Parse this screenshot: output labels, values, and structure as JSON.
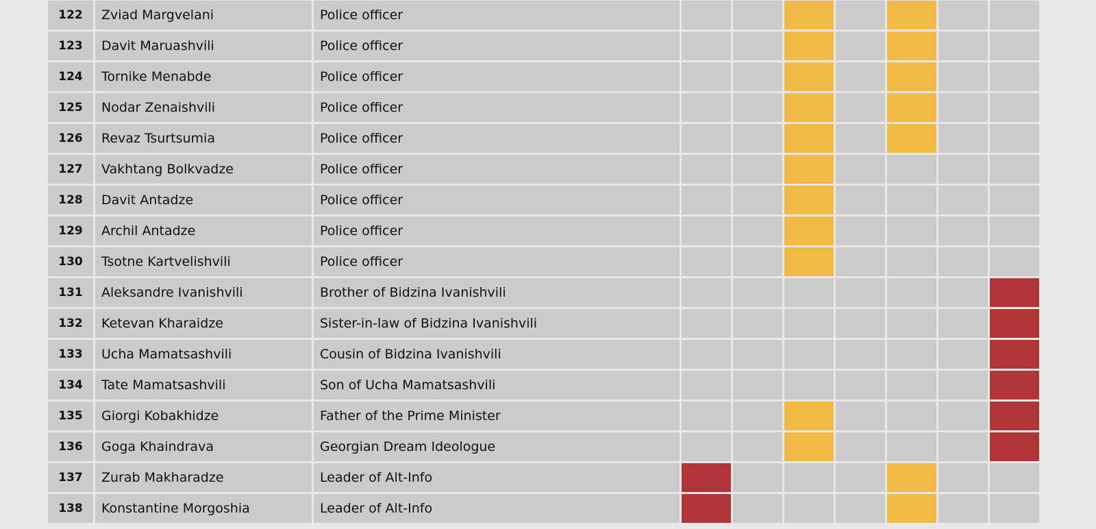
{
  "colors": {
    "cell_default": "#cbcbcb",
    "yellow": "#f2b945",
    "red": "#b03536",
    "background": "#e8e8e8"
  },
  "rows": [
    {
      "num": "122",
      "name": "Zviad Margvelani",
      "role": "Police officer",
      "cells": [
        "",
        "",
        "y",
        "",
        "y",
        "",
        ""
      ]
    },
    {
      "num": "123",
      "name": "Davit Maruashvili",
      "role": "Police officer",
      "cells": [
        "",
        "",
        "y",
        "",
        "y",
        "",
        ""
      ]
    },
    {
      "num": "124",
      "name": "Tornike Menabde",
      "role": "Police officer",
      "cells": [
        "",
        "",
        "y",
        "",
        "y",
        "",
        ""
      ]
    },
    {
      "num": "125",
      "name": "Nodar Zenaishvili",
      "role": "Police officer",
      "cells": [
        "",
        "",
        "y",
        "",
        "y",
        "",
        ""
      ]
    },
    {
      "num": "126",
      "name": "Revaz Tsurtsumia",
      "role": "Police officer",
      "cells": [
        "",
        "",
        "y",
        "",
        "y",
        "",
        ""
      ]
    },
    {
      "num": "127",
      "name": "Vakhtang Bolkvadze",
      "role": "Police officer",
      "cells": [
        "",
        "",
        "y",
        "",
        "",
        "",
        ""
      ]
    },
    {
      "num": "128",
      "name": "Davit Antadze",
      "role": "Police officer",
      "cells": [
        "",
        "",
        "y",
        "",
        "",
        "",
        ""
      ]
    },
    {
      "num": "129",
      "name": "Archil Antadze",
      "role": "Police officer",
      "cells": [
        "",
        "",
        "y",
        "",
        "",
        "",
        ""
      ]
    },
    {
      "num": "130",
      "name": "Tsotne Kartvelishvili",
      "role": "Police officer",
      "cells": [
        "",
        "",
        "y",
        "",
        "",
        "",
        ""
      ]
    },
    {
      "num": "131",
      "name": "Aleksandre Ivanishvili",
      "role": "Brother of Bidzina Ivanishvili",
      "cells": [
        "",
        "",
        "",
        "",
        "",
        "",
        "r"
      ]
    },
    {
      "num": "132",
      "name": "Ketevan Kharaidze",
      "role": "Sister-in-law of Bidzina Ivanishvili",
      "cells": [
        "",
        "",
        "",
        "",
        "",
        "",
        "r"
      ]
    },
    {
      "num": "133",
      "name": "Ucha Mamatsashvili",
      "role": "Cousin of Bidzina Ivanishvili",
      "cells": [
        "",
        "",
        "",
        "",
        "",
        "",
        "r"
      ]
    },
    {
      "num": "134",
      "name": "Tate Mamatsashvili",
      "role": "Son of Ucha Mamatsashvili",
      "cells": [
        "",
        "",
        "",
        "",
        "",
        "",
        "r"
      ]
    },
    {
      "num": "135",
      "name": "Giorgi Kobakhidze",
      "role": "Father of the Prime Minister",
      "cells": [
        "",
        "",
        "y",
        "",
        "",
        "",
        "r"
      ]
    },
    {
      "num": "136",
      "name": "Goga Khaindrava",
      "role": "Georgian Dream Ideologue",
      "cells": [
        "",
        "",
        "y",
        "",
        "",
        "",
        "r"
      ]
    },
    {
      "num": "137",
      "name": "Zurab Makharadze",
      "role": "Leader of Alt-Info",
      "cells": [
        "r",
        "",
        "",
        "",
        "y",
        "",
        ""
      ]
    },
    {
      "num": "138",
      "name": "Konstantine Morgoshia",
      "role": "Leader of Alt-Info",
      "cells": [
        "r",
        "",
        "",
        "",
        "y",
        "",
        ""
      ]
    }
  ]
}
